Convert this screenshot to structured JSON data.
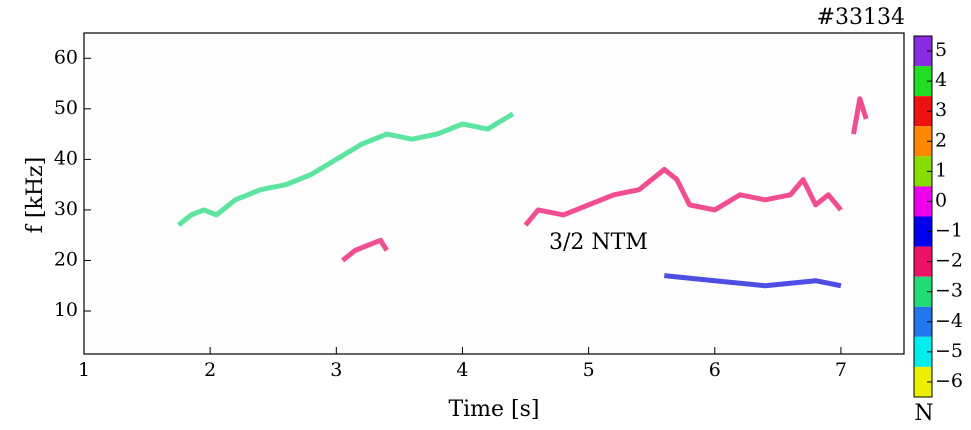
{
  "chart_data": {
    "type": "spectrogram",
    "title": "#33134",
    "xlabel": "Time [s]",
    "ylabel": "f [kHz]",
    "annotation": "3/2 NTM",
    "xlim": [
      1,
      7.5
    ],
    "xticks": [
      1,
      2,
      3,
      4,
      5,
      6,
      7
    ],
    "ylim": [
      1.5,
      65
    ],
    "yticks": [
      10,
      20,
      30,
      40,
      50,
      60
    ],
    "grid": false,
    "series": [
      {
        "color": "#33dd88",
        "x": [
          1.75,
          1.85,
          1.95,
          2.05,
          2.2,
          2.4,
          2.6,
          2.8,
          3.0,
          3.2,
          3.4,
          3.6,
          3.8,
          4.0,
          4.2,
          4.4
        ],
        "values": [
          27,
          29,
          30,
          29,
          32,
          34,
          35,
          37,
          40,
          43,
          45,
          44,
          45,
          47,
          46,
          49
        ]
      },
      {
        "color": "#ee2277",
        "x": [
          4.5,
          4.6,
          4.8,
          5.0,
          5.2,
          5.4,
          5.6,
          5.7,
          5.8,
          6.0,
          6.2,
          6.4,
          6.6,
          6.7,
          6.8,
          6.9,
          7.0
        ],
        "values": [
          27,
          30,
          29,
          31,
          33,
          34,
          38,
          36,
          31,
          30,
          33,
          32,
          33,
          36,
          31,
          33,
          30
        ]
      },
      {
        "color": "#ee2277",
        "x": [
          3.05,
          3.15,
          3.25,
          3.35,
          3.4
        ],
        "values": [
          20,
          22,
          23,
          24,
          22
        ]
      },
      {
        "color": "#ee2277",
        "x": [
          7.1,
          7.15,
          7.2
        ],
        "values": [
          45,
          52,
          48
        ]
      },
      {
        "color": "#2222dd",
        "x": [
          5.6,
          6.0,
          6.4,
          6.8,
          7.0
        ],
        "values": [
          17,
          16,
          15,
          16,
          15
        ]
      }
    ],
    "colorbar": {
      "label": "N",
      "levels": [
        5,
        4,
        3,
        2,
        1,
        0,
        {
          "value": -1,
          "label": "−1"
        },
        {
          "value": -2,
          "label": "−2"
        },
        {
          "value": -3,
          "label": "−3"
        },
        {
          "value": -4,
          "label": "−4"
        },
        {
          "value": -5,
          "label": "−5"
        },
        {
          "value": -6,
          "label": "−6"
        }
      ],
      "colors": [
        "#8a2be2",
        "#22dd22",
        "#ee1111",
        "#ff8800",
        "#88dd00",
        "#ee00ee",
        "#0000ee",
        "#ee1166",
        "#22dd77",
        "#2277ee",
        "#00eeee",
        "#eeee00"
      ]
    }
  }
}
